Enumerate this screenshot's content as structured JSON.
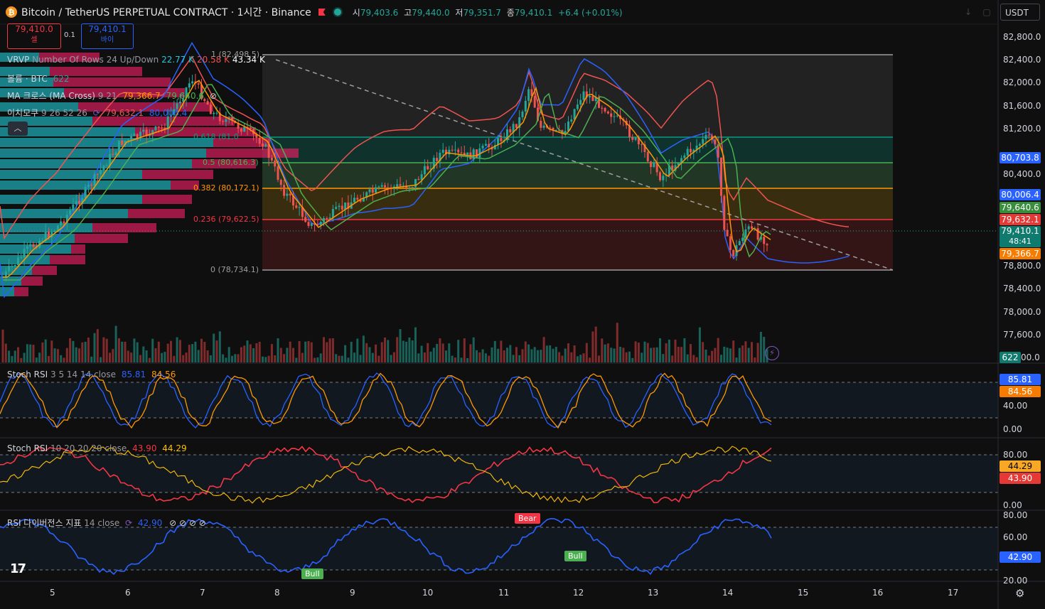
{
  "header": {
    "coin_icon": "bitcoin-icon",
    "title": "Bitcoin / TetherUS PERPETUAL CONTRACT · 1시간 · Binance",
    "ohlc": {
      "o_label": "시",
      "o": "79,403.6",
      "h_label": "고",
      "h": "79,440.0",
      "l_label": "저",
      "l": "79,351.7",
      "c_label": "종",
      "c": "79,410.1",
      "change": "+6.4 (+0.01%)"
    },
    "currency": "USDT"
  },
  "trade": {
    "sell_price": "79,410.0",
    "sell_label": "셀",
    "spread": "0.1",
    "buy_price": "79,410.1",
    "buy_label": "바이"
  },
  "indicators": {
    "vrvp": {
      "name": "VRVP",
      "params": "Number Of Rows 24 Up/Down",
      "up": "22.77 K",
      "down": "20.58 K",
      "total": "43.34 K"
    },
    "volume": {
      "name": "볼륨 · BTC",
      "value": "622"
    },
    "ma": {
      "name": "MA 크로스 (MA Cross)",
      "params": "9 21",
      "v1": "79,366.7",
      "v2": "79,640.6"
    },
    "ichimoku": {
      "name": "이치모쿠",
      "params": "9 26 52 26",
      "v1": "79,632.1",
      "v2": "80,006.4"
    }
  },
  "fib": {
    "top_label": "1 (82,498.5)",
    "l05": "0.5 (80,616.3)",
    "l0382": "0.382 (80,172.1)",
    "l0236": "0.236 (79,622.5)",
    "l0": "0 (78,734.1)",
    "partial_label": "0.618 (81,0"
  },
  "price_axis": {
    "labels": [
      "82,800.0",
      "82,400.0",
      "82,000.0",
      "81,600.0",
      "81,200.0",
      "80,400.0",
      "78,800.0",
      "78,400.0",
      "78,000.0",
      "77,600.0"
    ],
    "partial": "00.0",
    "badges": {
      "b1": "80,703.8",
      "b2": "80,006.4",
      "b3": "79,640.6",
      "b4": "79,632.1",
      "b5": "79,410.1",
      "b5_timer": "48:41",
      "b6": "79,366.7",
      "vol": "622"
    }
  },
  "stoch1": {
    "name": "Stoch RSI",
    "params": "3 5 14 14 close",
    "k": "85.81",
    "d": "84.56",
    "axis": [
      "40.00",
      "0.00"
    ]
  },
  "stoch2": {
    "name": "Stoch RSI",
    "params": "10 20 20 20 close",
    "k": "43.90",
    "d": "44.29",
    "axis": [
      "80.00",
      "0.00"
    ]
  },
  "rsi": {
    "name": "RSI 다이버전스 지표",
    "params": "14 close",
    "value": "42.90",
    "axis": [
      "80.00",
      "60.00",
      "20.00"
    ],
    "bear": "Bear",
    "bull": "Bull"
  },
  "time_axis": [
    "5",
    "6",
    "7",
    "8",
    "9",
    "10",
    "11",
    "12",
    "13",
    "14",
    "15",
    "16",
    "17"
  ],
  "colors": {
    "up": "#26a69a",
    "down": "#ef5350",
    "fib_green": "#4caf50",
    "fib_orange": "#ff9800",
    "fib_red": "#f23645",
    "fib_teal": "#089981",
    "ichimoku_blue": "#2962ff"
  },
  "icons": {
    "settings": "gear-icon",
    "eye_off": "eye-off-icon",
    "refresh": "refresh-icon",
    "alert": "lightning-icon"
  }
}
